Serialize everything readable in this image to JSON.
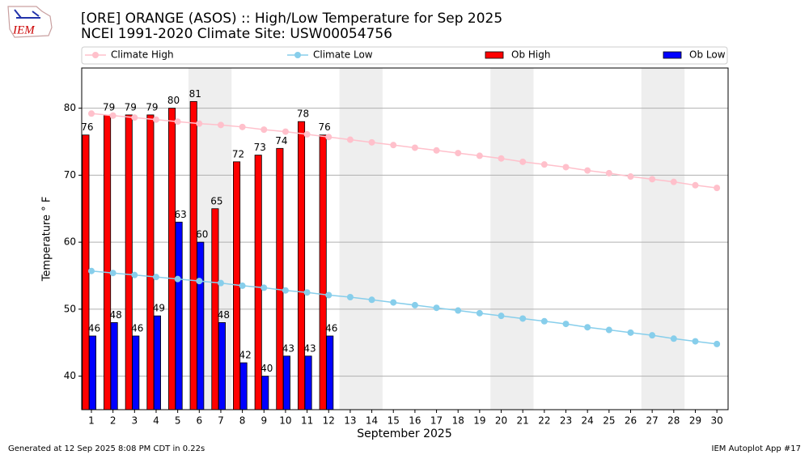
{
  "logo": {
    "text": "IEM"
  },
  "footer": {
    "left": "Generated at 12 Sep 2025 8:08 PM CDT in 0.22s",
    "right": "IEM Autoplot App #17"
  },
  "chart_data": {
    "type": "bar",
    "title": "[ORE] ORANGE (ASOS) :: High/Low Temperature for Sep 2025",
    "subtitle": "NCEI 1991-2020 Climate Site: USW00054756",
    "x_label": "September 2025",
    "y_label": "Temperature ° F",
    "x": [
      1,
      2,
      3,
      4,
      5,
      6,
      7,
      8,
      9,
      10,
      11,
      12,
      13,
      14,
      15,
      16,
      17,
      18,
      19,
      20,
      21,
      22,
      23,
      24,
      25,
      26,
      27,
      28,
      29,
      30
    ],
    "xlim": [
      0.55,
      30.52
    ],
    "xticks": [
      1,
      2,
      3,
      4,
      5,
      6,
      7,
      8,
      9,
      10,
      11,
      12,
      13,
      14,
      15,
      16,
      17,
      18,
      19,
      20,
      21,
      22,
      23,
      24,
      25,
      26,
      27,
      28,
      29,
      30
    ],
    "ylim": [
      35,
      86
    ],
    "yticks": [
      40,
      50,
      60,
      70,
      80
    ],
    "grid": true,
    "shaded_ranges": [
      [
        6,
        7
      ],
      [
        13,
        14
      ],
      [
        20,
        21
      ],
      [
        27,
        28
      ]
    ],
    "series": [
      {
        "name": "Climate High",
        "type": "line",
        "color": "#ffc0cb",
        "values": [
          79.2,
          78.9,
          78.6,
          78.3,
          78.0,
          77.7,
          77.5,
          77.2,
          76.8,
          76.5,
          76.1,
          75.7,
          75.3,
          74.9,
          74.5,
          74.1,
          73.7,
          73.3,
          72.9,
          72.5,
          72.0,
          71.6,
          71.2,
          70.7,
          70.3,
          69.8,
          69.4,
          69.0,
          68.5,
          68.1
        ]
      },
      {
        "name": "Climate Low",
        "type": "line",
        "color": "#87ceeb",
        "values": [
          55.7,
          55.4,
          55.1,
          54.8,
          54.5,
          54.2,
          53.9,
          53.5,
          53.2,
          52.8,
          52.5,
          52.1,
          51.8,
          51.4,
          51.0,
          50.6,
          50.2,
          49.8,
          49.4,
          49.0,
          48.6,
          48.2,
          47.8,
          47.3,
          46.9,
          46.5,
          46.1,
          45.6,
          45.2,
          44.8
        ]
      },
      {
        "name": "Ob High",
        "type": "bar",
        "color": "#ff0000",
        "values": [
          76,
          79,
          79,
          79,
          80,
          81,
          65,
          72,
          73,
          74,
          78,
          76,
          null,
          null,
          null,
          null,
          null,
          null,
          null,
          null,
          null,
          null,
          null,
          null,
          null,
          null,
          null,
          null,
          null,
          null
        ]
      },
      {
        "name": "Ob Low",
        "type": "bar",
        "color": "#0000ff",
        "values": [
          46,
          48,
          46,
          49,
          63,
          60,
          48,
          42,
          40,
          43,
          43,
          46,
          null,
          null,
          null,
          null,
          null,
          null,
          null,
          null,
          null,
          null,
          null,
          null,
          null,
          null,
          null,
          null,
          null,
          null
        ]
      }
    ]
  }
}
